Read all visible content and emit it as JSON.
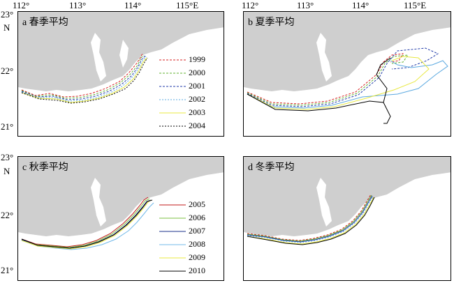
{
  "axes": {
    "top_x_ticks": [
      "112°",
      "113°",
      "114°",
      "115°E"
    ],
    "left_y_ticks_top": [
      "23°",
      "N",
      "22°",
      "21°"
    ],
    "left_y_ticks_bottom": [
      "23°",
      "N",
      "22°",
      "21°"
    ]
  },
  "panels": [
    {
      "id": "a",
      "title": "a 春季平均",
      "legend_key": "years_2000s"
    },
    {
      "id": "b",
      "title": "b 夏季平均"
    },
    {
      "id": "c",
      "title": "c 秋季平均",
      "legend_key": "years_2010s"
    },
    {
      "id": "d",
      "title": "d 冬季平均"
    }
  ],
  "legend_a": [
    {
      "label": "1999",
      "color": "#d61f1f",
      "dash": "3,2"
    },
    {
      "label": "2000",
      "color": "#5fb030",
      "dash": "3,2"
    },
    {
      "label": "2001",
      "color": "#1f3aa8",
      "dash": "3,2"
    },
    {
      "label": "2002",
      "color": "#5aa8e0",
      "dash": "2,2"
    },
    {
      "label": "2003",
      "color": "#e8e840",
      "dash": ""
    },
    {
      "label": "2004",
      "color": "#000000",
      "dash": "2,2"
    }
  ],
  "legend_c": [
    {
      "label": "2005",
      "color": "#c01818",
      "dash": ""
    },
    {
      "label": "2006",
      "color": "#7cc040",
      "dash": ""
    },
    {
      "label": "2007",
      "color": "#1a2f8a",
      "dash": ""
    },
    {
      "label": "2008",
      "color": "#70b8e8",
      "dash": ""
    },
    {
      "label": "2009",
      "color": "#e8e840",
      "dash": ""
    },
    {
      "label": "2010",
      "color": "#000000",
      "dash": ""
    }
  ],
  "colors": {
    "land": "#cfcfcf",
    "frame": "#000000"
  }
}
